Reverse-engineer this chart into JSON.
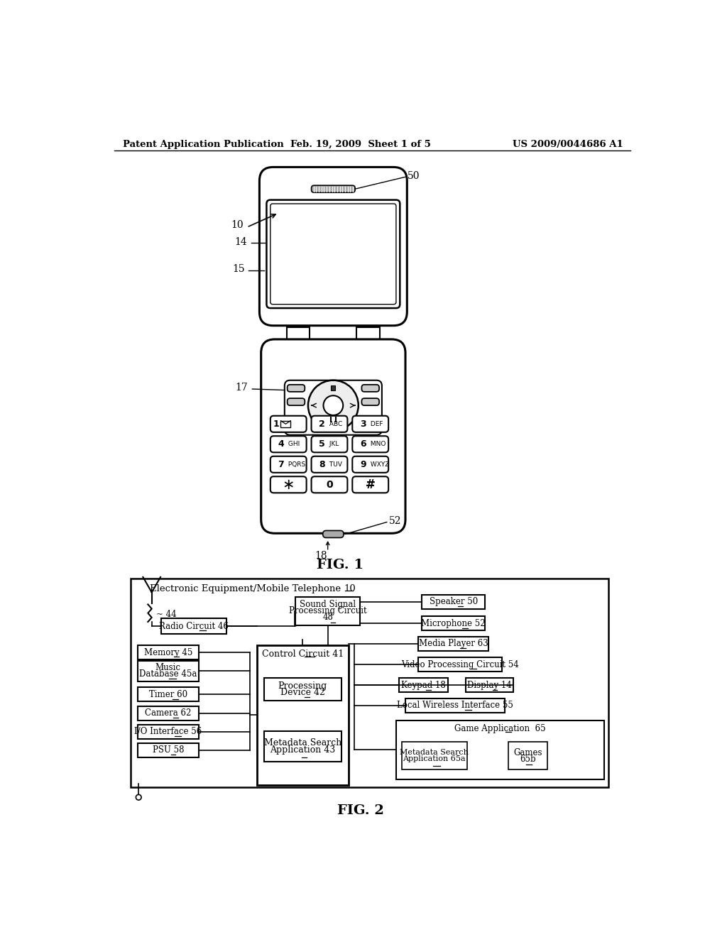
{
  "header_left": "Patent Application Publication",
  "header_mid": "Feb. 19, 2009  Sheet 1 of 5",
  "header_right": "US 2009/0044686 A1",
  "fig1_label": "FIG. 1",
  "fig2_label": "FIG. 2",
  "bg_color": "#ffffff",
  "line_color": "#000000"
}
